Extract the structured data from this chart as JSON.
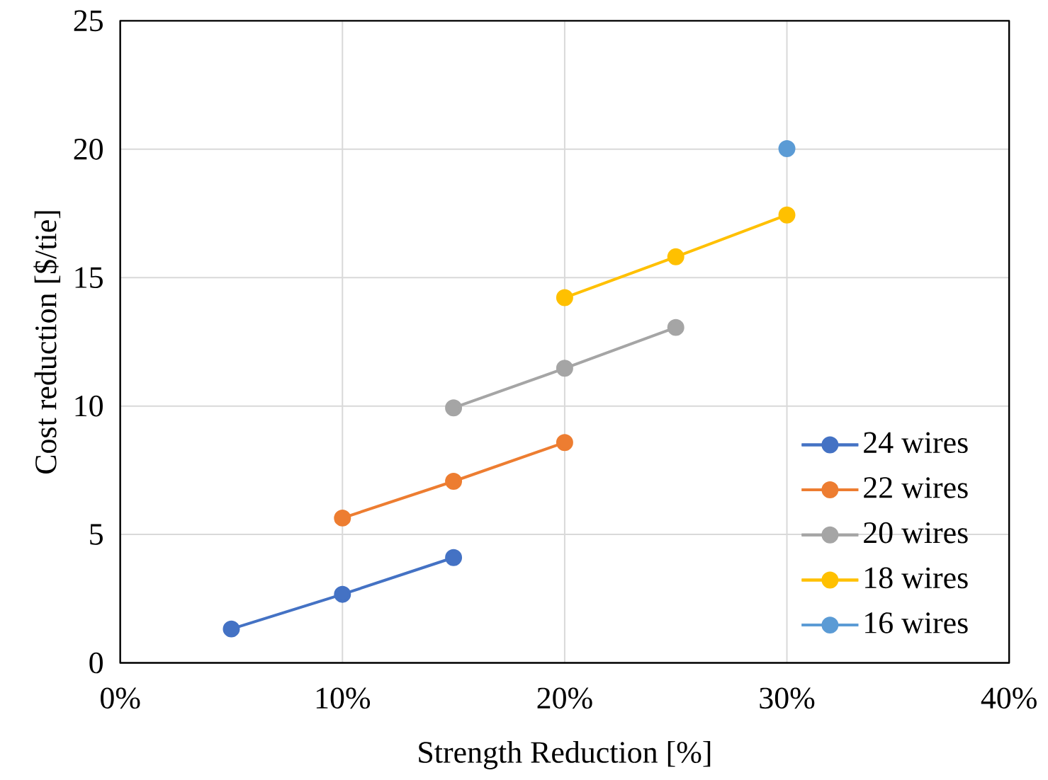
{
  "chart_data": {
    "type": "line",
    "xlabel": "Strength Reduction [%]",
    "ylabel": "Cost reduction [$/tie]",
    "xlim": [
      0,
      40
    ],
    "ylim": [
      0,
      25
    ],
    "xticks": [
      {
        "value": 0,
        "label": "0%"
      },
      {
        "value": 10,
        "label": "10%"
      },
      {
        "value": 20,
        "label": "20%"
      },
      {
        "value": 30,
        "label": "30%"
      },
      {
        "value": 40,
        "label": "40%"
      }
    ],
    "yticks": [
      0,
      5,
      10,
      15,
      20,
      25
    ],
    "grid": true,
    "legend": "right",
    "marker": "circle",
    "line_style": "solid",
    "series": [
      {
        "name": "24 wires",
        "color": "#4472c4",
        "x": [
          5,
          10,
          15
        ],
        "values": [
          1.32,
          2.67,
          4.1
        ]
      },
      {
        "name": "22 wires",
        "color": "#ed7d31",
        "x": [
          10,
          15,
          20
        ],
        "values": [
          5.64,
          7.07,
          8.58
        ]
      },
      {
        "name": "20 wires",
        "color": "#a5a5a5",
        "x": [
          15,
          20,
          25
        ],
        "values": [
          9.93,
          11.47,
          13.06
        ]
      },
      {
        "name": "18 wires",
        "color": "#ffc000",
        "x": [
          20,
          25,
          30
        ],
        "values": [
          14.22,
          15.81,
          17.44
        ]
      },
      {
        "name": "16 wires",
        "color": "#5b9bd5",
        "x": [
          30
        ],
        "values": [
          20.02
        ]
      }
    ]
  }
}
